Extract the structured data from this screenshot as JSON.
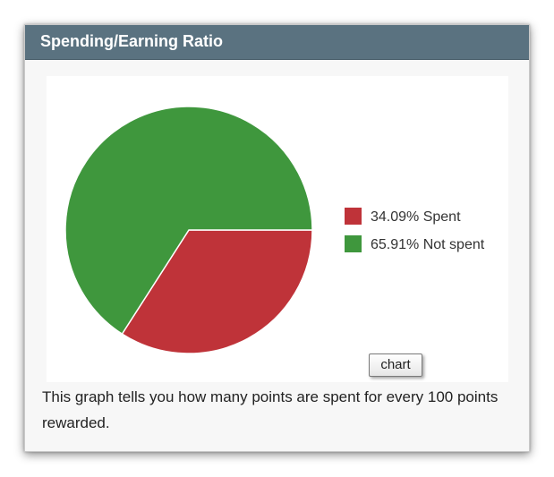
{
  "panel": {
    "title": "Spending/Earning Ratio",
    "button_label": "chart",
    "description": "This graph tells you how many points are spent for every 100 points rewarded."
  },
  "colors": {
    "header_bg": "#5a7280",
    "spent": "#bf3339",
    "not_spent": "#3f973d"
  },
  "chart_data": {
    "type": "pie",
    "title": "",
    "slices": [
      {
        "label": "34.09% Spent",
        "value": 34.09,
        "color": "#bf3339"
      },
      {
        "label": "65.91% Not spent",
        "value": 65.91,
        "color": "#3f973d"
      }
    ],
    "legend_position": "right"
  }
}
